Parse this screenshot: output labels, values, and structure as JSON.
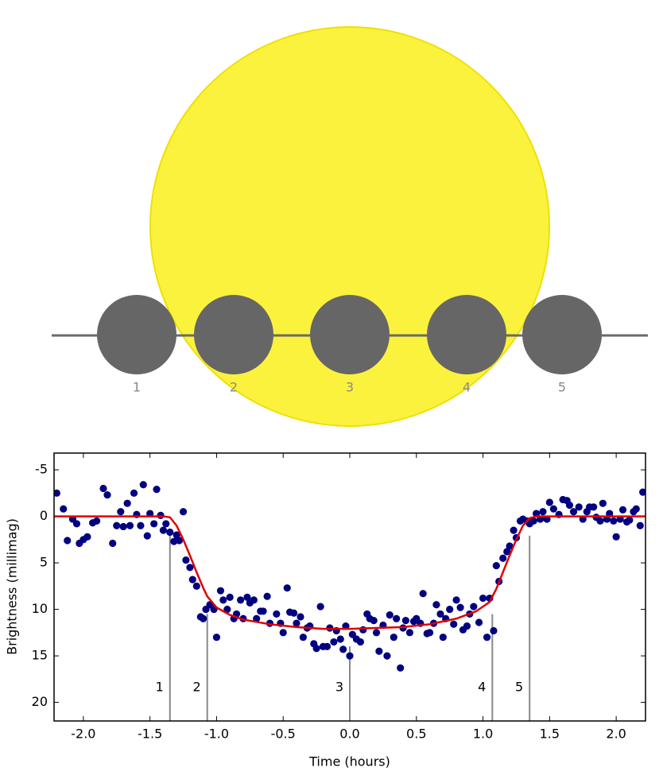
{
  "diagram": {
    "planets": [
      {
        "label": "1"
      },
      {
        "label": "2"
      },
      {
        "label": "3"
      },
      {
        "label": "4"
      },
      {
        "label": "5"
      }
    ]
  },
  "chart_data": {
    "type": "scatter",
    "x_label": "Time (hours)",
    "y_label": "Brightness (millimag)",
    "xlim": [
      -2.22,
      2.22
    ],
    "ylim": [
      22,
      -6.8
    ],
    "xticks": [
      {
        "value": -2,
        "label": "-2.0"
      },
      {
        "value": -1.5,
        "label": "-1.5"
      },
      {
        "value": -1,
        "label": "-1.0"
      },
      {
        "value": -0.5,
        "label": "-0.5"
      },
      {
        "value": 0,
        "label": "0.0"
      },
      {
        "value": 0.5,
        "label": "0.5"
      },
      {
        "value": 1,
        "label": "1.0"
      },
      {
        "value": 1.5,
        "label": "1.5"
      },
      {
        "value": 2,
        "label": "2.0"
      }
    ],
    "yticks": [
      -5,
      0,
      5,
      10,
      15,
      20
    ],
    "grid": false,
    "observations": {
      "color": "#000080",
      "x": [
        -2.2,
        -2.15,
        -2.12,
        -2.08,
        -2.05,
        -2.03,
        -2.0,
        -1.97,
        -1.93,
        -1.9,
        -1.85,
        -1.82,
        -1.78,
        -1.75,
        -1.72,
        -1.7,
        -1.67,
        -1.65,
        -1.62,
        -1.6,
        -1.57,
        -1.55,
        -1.52,
        -1.5,
        -1.47,
        -1.45,
        -1.42,
        -1.4,
        -1.38,
        -1.35,
        -1.32,
        -1.3,
        -1.28,
        -1.25,
        -1.23,
        -1.2,
        -1.18,
        -1.15,
        -1.12,
        -1.1,
        -1.08,
        -1.05,
        -1.02,
        -1.0,
        -0.97,
        -0.95,
        -0.92,
        -0.9,
        -0.87,
        -0.85,
        -0.82,
        -0.8,
        -0.77,
        -0.75,
        -0.72,
        -0.7,
        -0.67,
        -0.65,
        -0.62,
        -0.6,
        -0.55,
        -0.52,
        -0.5,
        -0.47,
        -0.45,
        -0.42,
        -0.4,
        -0.37,
        -0.35,
        -0.32,
        -0.3,
        -0.27,
        -0.25,
        -0.22,
        -0.2,
        -0.17,
        -0.15,
        -0.12,
        -0.1,
        -0.07,
        -0.05,
        -0.03,
        0.0,
        0.02,
        0.05,
        0.08,
        0.1,
        0.13,
        0.15,
        0.18,
        0.2,
        0.22,
        0.25,
        0.28,
        0.3,
        0.33,
        0.35,
        0.38,
        0.4,
        0.42,
        0.45,
        0.48,
        0.5,
        0.53,
        0.55,
        0.58,
        0.6,
        0.63,
        0.65,
        0.68,
        0.7,
        0.72,
        0.75,
        0.78,
        0.8,
        0.83,
        0.85,
        0.88,
        0.9,
        0.93,
        0.97,
        1.0,
        1.03,
        1.05,
        1.08,
        1.1,
        1.12,
        1.15,
        1.18,
        1.2,
        1.23,
        1.25,
        1.28,
        1.3,
        1.33,
        1.35,
        1.38,
        1.4,
        1.43,
        1.45,
        1.48,
        1.5,
        1.53,
        1.57,
        1.6,
        1.63,
        1.65,
        1.68,
        1.72,
        1.75,
        1.78,
        1.8,
        1.83,
        1.85,
        1.88,
        1.9,
        1.93,
        1.95,
        1.98,
        2.0,
        2.03,
        2.05,
        2.08,
        2.1,
        2.13,
        2.15,
        2.18,
        2.2
      ],
      "values": [
        -2.5,
        -0.8,
        2.6,
        0.3,
        0.8,
        2.9,
        2.5,
        2.2,
        0.7,
        0.5,
        -3.0,
        -2.3,
        2.9,
        1.0,
        -0.5,
        1.1,
        -1.4,
        1.0,
        -2.5,
        -0.2,
        1.0,
        -3.4,
        2.1,
        -0.3,
        0.8,
        -2.9,
        -0.1,
        1.5,
        0.8,
        1.7,
        2.7,
        2.0,
        2.6,
        -0.5,
        4.7,
        5.5,
        6.8,
        7.5,
        10.8,
        11.0,
        10.0,
        9.5,
        10.0,
        13.0,
        8.0,
        9.0,
        10.0,
        8.7,
        11.0,
        10.5,
        9.0,
        11.0,
        8.7,
        9.3,
        9.0,
        11.0,
        10.2,
        10.2,
        8.6,
        11.5,
        10.5,
        11.5,
        12.5,
        7.7,
        10.3,
        10.4,
        11.5,
        10.8,
        13.0,
        12.0,
        11.8,
        13.7,
        14.2,
        9.7,
        14.0,
        14.0,
        12.0,
        13.5,
        12.3,
        13.2,
        14.3,
        11.8,
        15.0,
        12.7,
        13.2,
        13.5,
        12.2,
        10.5,
        11.0,
        11.2,
        12.5,
        14.5,
        11.7,
        15.0,
        10.6,
        13.0,
        11.0,
        16.3,
        12.0,
        11.2,
        12.5,
        11.3,
        11.0,
        11.5,
        8.3,
        12.6,
        12.5,
        11.5,
        9.5,
        10.5,
        13.0,
        11.0,
        10.0,
        11.6,
        9.0,
        9.8,
        12.2,
        11.8,
        10.5,
        9.7,
        11.4,
        8.8,
        13.0,
        8.8,
        12.3,
        5.3,
        7.0,
        4.5,
        3.8,
        3.2,
        1.5,
        2.3,
        0.5,
        0.3,
        0.5,
        0.8,
        0.5,
        -0.3,
        0.3,
        -0.5,
        0.3,
        -1.5,
        -0.8,
        -0.2,
        -1.8,
        -1.7,
        -1.2,
        -0.5,
        -1.0,
        0.3,
        -0.5,
        -1.0,
        -1.0,
        0.1,
        0.5,
        -1.4,
        0.3,
        -0.3,
        0.5,
        2.2,
        0.3,
        -0.7,
        0.6,
        0.4,
        -0.5,
        -0.8,
        1.0,
        -2.6
      ]
    },
    "model": {
      "color": "#e00000",
      "x": [
        -2.22,
        -1.4,
        -1.35,
        -1.3,
        -1.25,
        -1.2,
        -1.15,
        -1.1,
        -1.07,
        -1.0,
        -0.9,
        -0.8,
        -0.6,
        -0.4,
        -0.2,
        0,
        0.2,
        0.4,
        0.6,
        0.8,
        0.95,
        1.05,
        1.1,
        1.15,
        1.2,
        1.25,
        1.3,
        1.35,
        1.4,
        2.22
      ],
      "values": [
        0,
        0,
        0.1,
        1,
        2.5,
        4.2,
        6,
        7.7,
        8.6,
        9.8,
        10.6,
        11.1,
        11.6,
        11.9,
        12.1,
        12.1,
        12.0,
        11.9,
        11.6,
        11.0,
        10.2,
        9.2,
        7.8,
        6,
        4.2,
        2.5,
        1,
        0.2,
        0,
        0
      ]
    },
    "annotations": [
      {
        "x": -1.35,
        "label": "1"
      },
      {
        "x": -1.07,
        "label": "2"
      },
      {
        "x": 0,
        "label": "3"
      },
      {
        "x": 1.07,
        "label": "4"
      },
      {
        "x": 1.35,
        "label": "5"
      }
    ]
  }
}
